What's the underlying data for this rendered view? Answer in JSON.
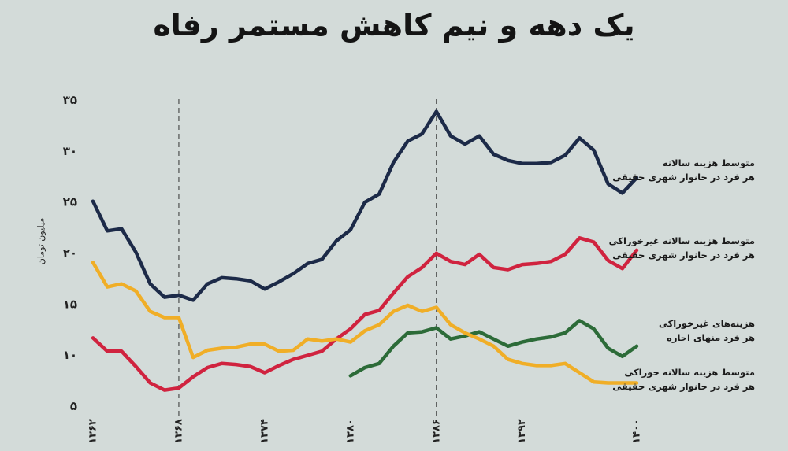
{
  "title": "یک دهه و نیم کاهش مستمر رفاه",
  "chart_data": {
    "type": "line",
    "ylabel": "میلیون تومان",
    "ylim": [
      5,
      35
    ],
    "yticks": [
      5,
      10,
      15,
      20,
      25,
      30,
      35
    ],
    "ytick_labels": [
      "۵",
      "۱۰",
      "۱۵",
      "۲۰",
      "۲۵",
      "۳۰",
      "۳۵"
    ],
    "xlim": [
      1362,
      1400
    ],
    "xticks": [
      1362,
      1368,
      1374,
      1380,
      1386,
      1392,
      1400
    ],
    "xtick_labels": [
      "۱۳۶۲",
      "۱۳۶۸",
      "۱۳۷۴",
      "۱۳۸۰",
      "۱۳۸۶",
      "۱۳۹۲",
      "۱۴۰۰"
    ],
    "vlines": [
      1368,
      1386
    ],
    "series": [
      {
        "name": "متوسط هزینه سالانه هر فرد در خانوار شهری حقیقی",
        "label_lines": [
          "متوسط هزینه سالانه",
          "هر فرد در خانوار شهری حقیقی"
        ],
        "color": "#1c2a48",
        "x": [
          1362,
          1363,
          1364,
          1365,
          1366,
          1367,
          1368,
          1369,
          1370,
          1371,
          1372,
          1373,
          1374,
          1375,
          1376,
          1377,
          1378,
          1379,
          1380,
          1381,
          1382,
          1383,
          1384,
          1385,
          1386,
          1387,
          1388,
          1389,
          1390,
          1391,
          1392,
          1393,
          1394,
          1395,
          1396,
          1397,
          1398,
          1399,
          1400
        ],
        "values": [
          25.0,
          22.1,
          22.3,
          20.0,
          16.9,
          15.6,
          15.8,
          15.3,
          16.9,
          17.5,
          17.4,
          17.2,
          16.4,
          17.1,
          17.9,
          18.9,
          19.3,
          21.1,
          22.2,
          24.9,
          25.7,
          28.8,
          30.9,
          31.6,
          33.8,
          31.4,
          30.6,
          31.4,
          29.6,
          29.0,
          28.7,
          28.7,
          28.8,
          29.5,
          31.2,
          30.0,
          26.7,
          25.8,
          27.3
        ]
      },
      {
        "name": "متوسط هزینه سالانه غیرخوراکی هر فرد در خانوار شهری حقیقی",
        "label_lines": [
          "متوسط هزینه سالانه غیرخوراکی",
          "هر فرد در خانوار شهری حقیقی"
        ],
        "color": "#d0233f",
        "x": [
          1362,
          1363,
          1364,
          1365,
          1366,
          1367,
          1368,
          1369,
          1370,
          1371,
          1372,
          1373,
          1374,
          1375,
          1376,
          1377,
          1378,
          1379,
          1380,
          1381,
          1382,
          1383,
          1384,
          1385,
          1386,
          1387,
          1388,
          1389,
          1390,
          1391,
          1392,
          1393,
          1394,
          1395,
          1396,
          1397,
          1398,
          1399,
          1400
        ],
        "values": [
          11.6,
          10.3,
          10.3,
          8.8,
          7.2,
          6.5,
          6.7,
          7.8,
          8.7,
          9.1,
          9.0,
          8.8,
          8.2,
          8.9,
          9.5,
          9.9,
          10.3,
          11.5,
          12.5,
          13.9,
          14.3,
          16.0,
          17.6,
          18.5,
          19.9,
          19.1,
          18.8,
          19.8,
          18.5,
          18.3,
          18.8,
          18.9,
          19.1,
          19.8,
          21.4,
          21.0,
          19.2,
          18.4,
          20.2
        ]
      },
      {
        "name": "هزینه‌های غیرخوراکی هر فرد منهای اجاره",
        "label_lines": [
          "هزینه‌های غیرخوراکی",
          "هر فرد منهای اجاره"
        ],
        "color": "#2c6b38",
        "x": [
          1380,
          1381,
          1382,
          1383,
          1384,
          1385,
          1386,
          1387,
          1388,
          1389,
          1390,
          1391,
          1392,
          1393,
          1394,
          1395,
          1396,
          1397,
          1398,
          1399,
          1400
        ],
        "values": [
          7.9,
          8.7,
          9.1,
          10.8,
          12.1,
          12.2,
          12.6,
          11.5,
          11.8,
          12.2,
          11.5,
          10.8,
          11.2,
          11.5,
          11.7,
          12.1,
          13.3,
          12.5,
          10.6,
          9.8,
          10.8
        ]
      },
      {
        "name": "متوسط هزینه سالانه خوراکی هر فرد در خانوار شهری حقیقی",
        "label_lines": [
          "متوسط هزینه سالانه خوراکی",
          "هر فرد در خانوار شهری حقیقی"
        ],
        "color": "#f0ae27",
        "x": [
          1362,
          1363,
          1364,
          1365,
          1366,
          1367,
          1368,
          1369,
          1370,
          1371,
          1372,
          1373,
          1374,
          1375,
          1376,
          1377,
          1378,
          1379,
          1380,
          1381,
          1382,
          1383,
          1384,
          1385,
          1386,
          1387,
          1388,
          1389,
          1390,
          1391,
          1392,
          1393,
          1394,
          1395,
          1396,
          1397,
          1398,
          1399,
          1400
        ],
        "values": [
          19.0,
          16.6,
          16.9,
          16.2,
          14.2,
          13.6,
          13.6,
          9.7,
          10.4,
          10.6,
          10.7,
          11.0,
          11.0,
          10.3,
          10.4,
          11.5,
          11.3,
          11.5,
          11.2,
          12.3,
          12.9,
          14.2,
          14.8,
          14.2,
          14.6,
          12.9,
          12.1,
          11.5,
          10.8,
          9.5,
          9.1,
          8.9,
          8.9,
          9.1,
          8.2,
          7.3,
          7.2,
          7.2,
          7.2
        ]
      }
    ]
  }
}
